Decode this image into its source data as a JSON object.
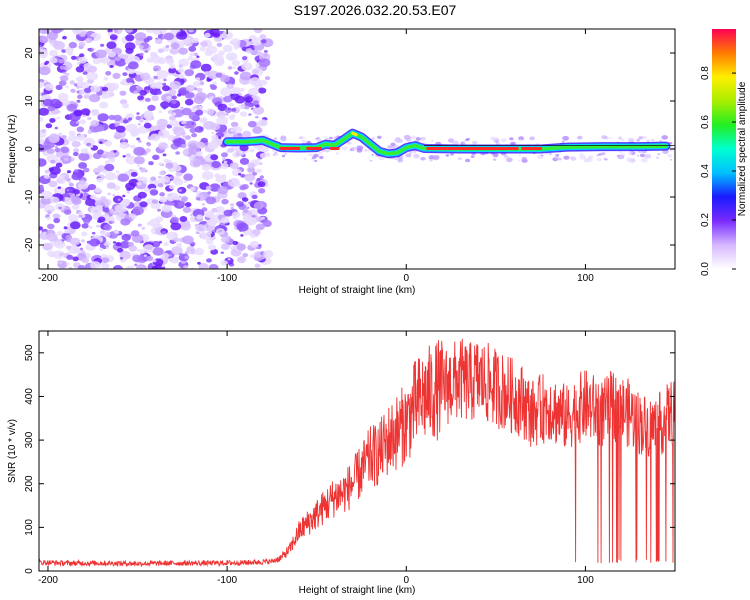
{
  "title": "S197.2026.032.20.53.E07",
  "chart_data": [
    {
      "type": "heatmap",
      "xlabel": "Height of straight line (km)",
      "ylabel": "Frequency (Hz)",
      "xlim": [
        -205,
        150
      ],
      "ylim": [
        -25,
        25
      ],
      "xticks": [
        -200,
        -100,
        0,
        100
      ],
      "yticks": [
        -20,
        -10,
        0,
        10,
        20
      ],
      "colorbar": {
        "label": "Normalized spectral amplitude",
        "range": [
          0,
          0.98
        ],
        "ticks": [
          0.0,
          0.2,
          0.4,
          0.6,
          0.8
        ]
      },
      "noise_region_x": [
        -205,
        -77
      ],
      "signal_track": [
        {
          "x": -100,
          "y": 1.5
        },
        {
          "x": -90,
          "y": 1.5
        },
        {
          "x": -80,
          "y": 1.8
        },
        {
          "x": -70,
          "y": 0.3
        },
        {
          "x": -60,
          "y": 0.2
        },
        {
          "x": -50,
          "y": 0.3
        },
        {
          "x": -45,
          "y": 1.0
        },
        {
          "x": -40,
          "y": 0.8
        },
        {
          "x": -35,
          "y": 2.0
        },
        {
          "x": -30,
          "y": 3.3
        },
        {
          "x": -25,
          "y": 2.5
        },
        {
          "x": -20,
          "y": 1.0
        },
        {
          "x": -15,
          "y": -0.5
        },
        {
          "x": -10,
          "y": -1.0
        },
        {
          "x": -5,
          "y": -0.8
        },
        {
          "x": 0,
          "y": 0.3
        },
        {
          "x": 5,
          "y": 0.7
        },
        {
          "x": 10,
          "y": 0.1
        },
        {
          "x": 30,
          "y": 0.0
        },
        {
          "x": 60,
          "y": 0.0
        },
        {
          "x": 75,
          "y": 0.0
        },
        {
          "x": 90,
          "y": 0.4
        },
        {
          "x": 110,
          "y": 0.5
        },
        {
          "x": 130,
          "y": 0.5
        },
        {
          "x": 145,
          "y": 0.6
        }
      ]
    },
    {
      "type": "line",
      "xlabel": "Height of straight line (km)",
      "ylabel": "SNR (10 * v/v)",
      "xlim": [
        -205,
        150
      ],
      "ylim": [
        0,
        550
      ],
      "xticks": [
        -200,
        -100,
        0,
        100
      ],
      "yticks": [
        0,
        100,
        200,
        300,
        400,
        500
      ],
      "series_color": "#ee3333",
      "series": [
        {
          "name": "SNR",
          "x": [
            -205,
            -190,
            -170,
            -150,
            -130,
            -110,
            -90,
            -75,
            -70,
            -65,
            -60,
            -55,
            -50,
            -45,
            -40,
            -35,
            -30,
            -25,
            -20,
            -15,
            -10,
            -5,
            0,
            5,
            10,
            15,
            20,
            25,
            30,
            35,
            40,
            45,
            50,
            55,
            60,
            65,
            70,
            75,
            80,
            85,
            90,
            95,
            100,
            105,
            110,
            115,
            120,
            125,
            130,
            135,
            140,
            145,
            150
          ],
          "y": [
            20,
            18,
            18,
            17,
            18,
            18,
            19,
            22,
            30,
            50,
            90,
            110,
            130,
            150,
            170,
            180,
            200,
            230,
            260,
            270,
            300,
            320,
            340,
            380,
            400,
            410,
            420,
            430,
            440,
            430,
            440,
            430,
            420,
            410,
            400,
            390,
            360,
            370,
            380,
            360,
            350,
            370,
            380,
            370,
            360,
            380,
            370,
            360,
            340,
            330,
            330,
            350,
            370
          ],
          "notes": "noisy trace; intermittent drops to ~20 between x=75 and x=150"
        }
      ]
    }
  ]
}
